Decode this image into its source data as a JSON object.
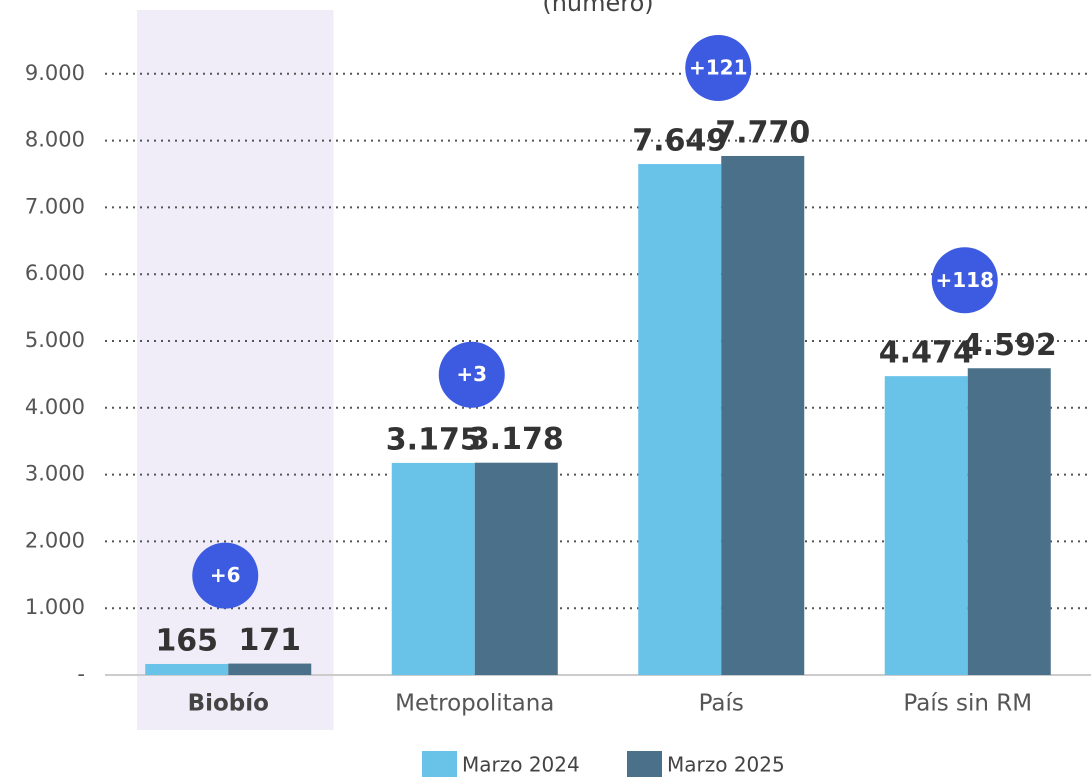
{
  "chart_data": {
    "type": "bar",
    "subtitle": "(número)",
    "categories": [
      "Biobío",
      "Metropolitana",
      "País",
      "País sin RM"
    ],
    "highlight": "Biobío",
    "series": [
      {
        "name": "Marzo 2024",
        "color": "#69c2e8",
        "values": [
          165,
          3175,
          7649,
          4474
        ],
        "value_labels": [
          "165",
          "3.175",
          "7.649",
          "4.474"
        ]
      },
      {
        "name": "Marzo 2025",
        "color": "#4a7189",
        "values": [
          171,
          3178,
          7770,
          4592
        ],
        "value_labels": [
          "171",
          "3.178",
          "7.770",
          "4.592"
        ]
      }
    ],
    "differences": {
      "color": "#3d5be0",
      "values": [
        6,
        3,
        121,
        118
      ],
      "value_labels": [
        "+6",
        "+3",
        "+121",
        "+118"
      ]
    },
    "ylim": [
      0,
      10000
    ],
    "yticks": [
      {
        "value": 0,
        "label": "-"
      },
      {
        "value": 1000,
        "label": "1.000"
      },
      {
        "value": 2000,
        "label": "2.000"
      },
      {
        "value": 3000,
        "label": "3.000"
      },
      {
        "value": 4000,
        "label": "4.000"
      },
      {
        "value": 5000,
        "label": "5.000"
      },
      {
        "value": 6000,
        "label": "6.000"
      },
      {
        "value": 7000,
        "label": "7.000"
      },
      {
        "value": 8000,
        "label": "8.000"
      },
      {
        "value": 9000,
        "label": "9.000"
      }
    ],
    "grid": true,
    "legend": "bottom"
  }
}
